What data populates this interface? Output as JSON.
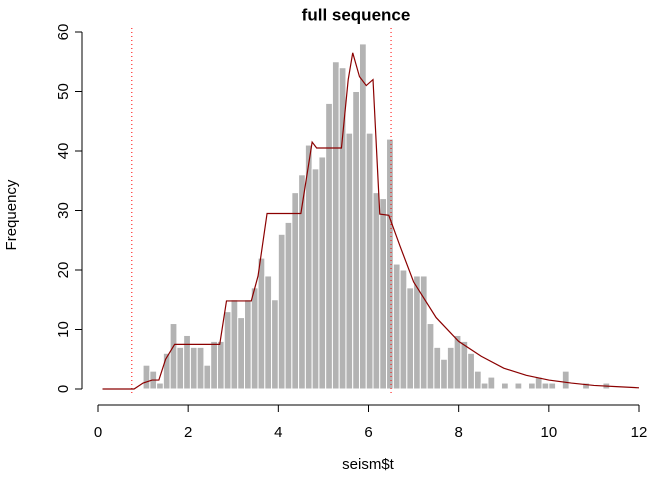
{
  "chart_data": {
    "type": "histogram",
    "title": "full sequence",
    "x_label": "seism$t",
    "y_label": "Frequency",
    "bins": [
      1.0,
      1.15,
      1.3,
      1.45,
      1.6,
      1.75,
      1.9,
      2.05,
      2.2,
      2.35,
      2.5,
      2.65,
      2.8,
      2.95,
      3.1,
      3.25,
      3.4,
      3.55,
      3.7,
      3.85,
      4.0,
      4.15,
      4.3,
      4.45,
      4.6,
      4.75,
      4.9,
      5.05,
      5.2,
      5.35,
      5.5,
      5.65,
      5.8,
      5.95,
      6.1,
      6.25,
      6.4,
      6.55,
      6.7,
      6.85,
      7.0,
      7.15,
      7.3,
      7.45,
      7.6,
      7.75,
      7.9,
      8.05,
      8.2,
      8.35,
      8.5,
      8.65,
      8.8,
      8.95,
      9.1,
      9.25,
      9.4,
      9.55,
      9.7,
      9.85,
      10.0,
      10.15,
      10.3,
      10.45,
      10.6,
      10.75,
      10.9,
      11.05,
      11.2,
      11.35,
      11.5
    ],
    "values": [
      4,
      3,
      1,
      6,
      11,
      7,
      9,
      7,
      7,
      4,
      8,
      8,
      13,
      15,
      12,
      15,
      17,
      22,
      19,
      15,
      26,
      28,
      33,
      36,
      41,
      37,
      39,
      48,
      55,
      54,
      43,
      50,
      58,
      43,
      33,
      32,
      42,
      21,
      20,
      17,
      19,
      19,
      11,
      7,
      5,
      7,
      9,
      8,
      6,
      3,
      1,
      2,
      0,
      1,
      0,
      1,
      0,
      1,
      2,
      1,
      1,
      0,
      3,
      0,
      0,
      1,
      0,
      0,
      1,
      0
    ],
    "color": "#b3b3b3",
    "line": {
      "color": "#8b0000",
      "x": [
        0.1,
        0.8,
        1.0,
        1.2,
        1.35,
        1.5,
        1.7,
        2.5,
        2.7,
        2.85,
        3.4,
        3.55,
        3.75,
        4.5,
        4.75,
        4.85,
        5.4,
        5.55,
        5.65,
        5.8,
        5.95,
        6.1,
        6.25,
        6.45,
        6.7,
        7.0,
        7.5,
        8.0,
        8.5,
        9.0,
        9.5,
        10.0,
        10.5,
        11.0,
        11.5,
        12.0
      ],
      "values": [
        0,
        0,
        1,
        1.5,
        1.5,
        5,
        7.5,
        7.5,
        7.5,
        14.8,
        14.8,
        19,
        29.5,
        29.5,
        41.5,
        40.5,
        40.5,
        52,
        56.5,
        52.5,
        51,
        52,
        29.4,
        29.2,
        24,
        18,
        12,
        8,
        5.5,
        3.5,
        2.3,
        1.5,
        1,
        0.6,
        0.4,
        0.2
      ]
    },
    "vlines": [
      0.75,
      6.5
    ],
    "vline_color": "#ff0000",
    "xlim": [
      0,
      12
    ],
    "ylim": [
      0,
      60
    ],
    "xticks": [
      0,
      2,
      4,
      6,
      8,
      10,
      12
    ],
    "yticks": [
      0,
      10,
      20,
      30,
      40,
      50,
      60
    ]
  }
}
